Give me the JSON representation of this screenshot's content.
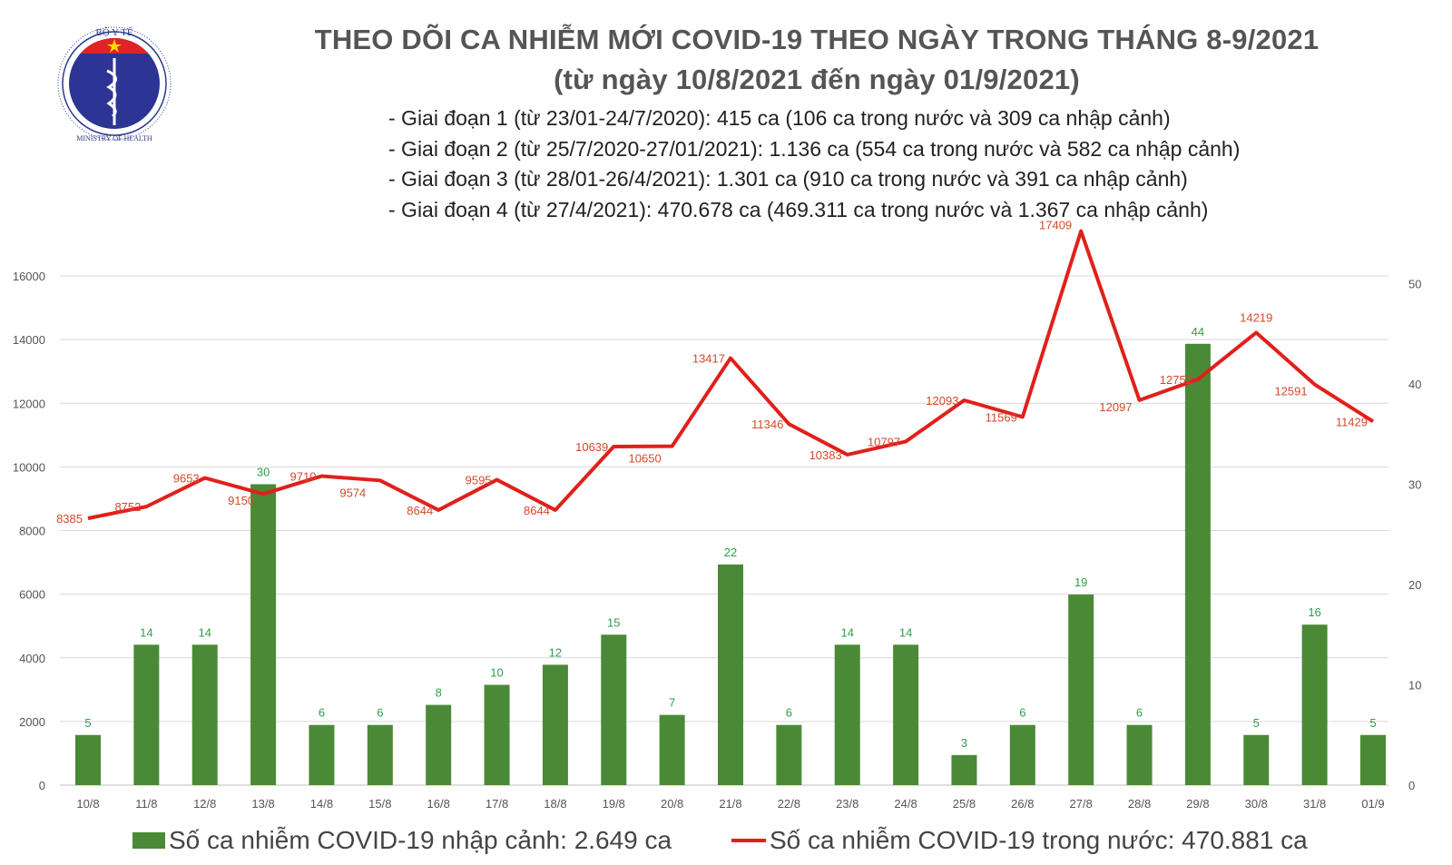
{
  "logo": {
    "text_top": "BỘ Y TẾ",
    "text_bottom": "MINISTRY OF HEALTH"
  },
  "title": "THEO DÕI CA NHIỄM MỚI COVID-19 THEO NGÀY TRONG THÁNG 8-9/2021",
  "subtitle": "(từ ngày 10/8/2021 đến ngày 01/9/2021)",
  "phases": [
    "- Giai đoạn 1 (từ 23/01-24/7/2020): 415 ca (106 ca trong nước và 309 ca nhập cảnh)",
    "- Giai đoạn 2 (từ 25/7/2020-27/01/2021): 1.136 ca (554 ca trong nước và 582 ca nhập cảnh)",
    "- Giai đoạn 3 (từ 28/01-26/4/2021): 1.301 ca (910 ca trong nước và 391 ca nhập cảnh)",
    "- Giai đoạn 4 (từ 27/4/2021): 470.678 ca (469.311 ca trong nước và 1.367 ca nhập cảnh)"
  ],
  "chart_data": {
    "type": "bar+line",
    "categories": [
      "10/8",
      "11/8",
      "12/8",
      "13/8",
      "14/8",
      "15/8",
      "16/8",
      "17/8",
      "18/8",
      "19/8",
      "20/8",
      "21/8",
      "22/8",
      "23/8",
      "24/8",
      "25/8",
      "26/8",
      "27/8",
      "28/8",
      "29/8",
      "30/8",
      "31/8",
      "01/9"
    ],
    "series": [
      {
        "name": "Số ca nhiễm COVID-19 nhập cảnh: 2.649 ca",
        "type": "bar",
        "axis": "right",
        "color": "#4a8a36",
        "values": [
          5,
          14,
          14,
          30,
          6,
          6,
          8,
          10,
          12,
          15,
          7,
          22,
          6,
          14,
          14,
          3,
          6,
          19,
          6,
          44,
          5,
          16,
          5
        ]
      },
      {
        "name": "Số ca nhiễm COVID-19 trong nước: 470.881 ca",
        "type": "line",
        "axis": "left",
        "color": "#e0201b",
        "values": [
          8385,
          8752,
          9653,
          9150,
          9710,
          9574,
          8644,
          9595,
          8644,
          10639,
          10650,
          13417,
          11346,
          10383,
          10797,
          12093,
          11569,
          17409,
          12097,
          12752,
          14219,
          12591,
          11429
        ]
      }
    ],
    "y_left": {
      "range": [
        0,
        16000
      ],
      "ticks": [
        "0",
        "2000",
        "4000",
        "6000",
        "8000",
        "10000",
        "12000",
        "14000",
        "16000"
      ]
    },
    "y_right": {
      "range": [
        0,
        50
      ],
      "ticks": [
        "0",
        "10",
        "20",
        "30",
        "40",
        "50"
      ]
    },
    "grid": true,
    "legend": "bottom",
    "label_colors": {
      "bar": "#2e9e4a",
      "line": "#d4492a"
    }
  }
}
